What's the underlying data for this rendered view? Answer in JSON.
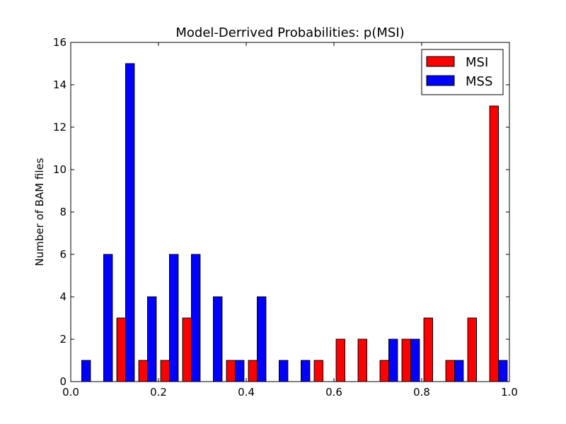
{
  "chart_data": {
    "type": "bar",
    "title": "Model-Derrived Probabilities: p(MSI)",
    "xlabel": "",
    "ylabel": "Number of BAM files",
    "xlim": [
      0.0,
      1.0
    ],
    "ylim": [
      0,
      16
    ],
    "x_ticks": [
      "0.0",
      "0.2",
      "0.4",
      "0.6",
      "0.8",
      "1.0"
    ],
    "y_ticks": [
      "0",
      "2",
      "4",
      "6",
      "8",
      "10",
      "12",
      "14",
      "16"
    ],
    "bins": 20,
    "bin_width": 0.05,
    "legend_position": "top-right",
    "grid": false,
    "series": [
      {
        "name": "MSI",
        "color": "#ff0000",
        "values": [
          0,
          0,
          3,
          1,
          1,
          3,
          0,
          1,
          1,
          0,
          0,
          1,
          2,
          2,
          1,
          2,
          3,
          1,
          3,
          13
        ]
      },
      {
        "name": "MSS",
        "color": "#0000ff",
        "values": [
          1,
          6,
          15,
          4,
          6,
          6,
          4,
          1,
          4,
          1,
          1,
          0,
          0,
          0,
          2,
          2,
          0,
          1,
          0,
          1
        ]
      }
    ]
  }
}
